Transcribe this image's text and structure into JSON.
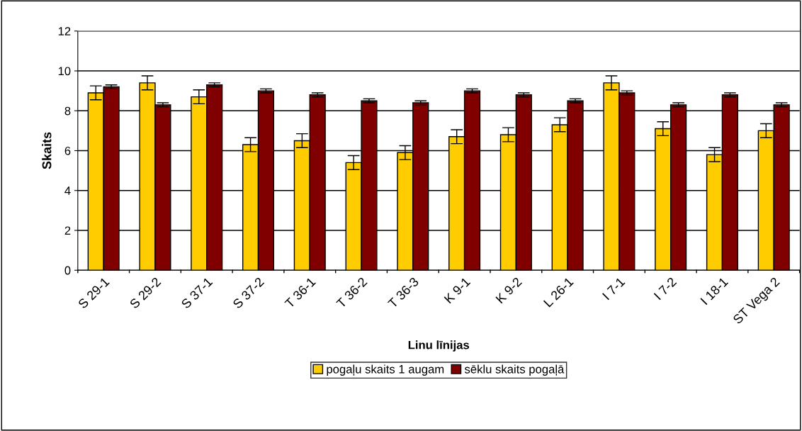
{
  "chart_data": {
    "type": "bar",
    "xlabel": "Linu līnijas",
    "ylabel": "Skaits",
    "categories": [
      "S 29-1",
      "S 29-2",
      "S 37-1",
      "S 37-2",
      "T 36-1",
      "T 36-2",
      "T 36-3",
      "K 9-1",
      "K 9-2",
      "L 26-1",
      "I 7-1",
      "I 7-2",
      "I 18-1",
      "ST Vega 2"
    ],
    "series": [
      {
        "name": "pogaļu skaits 1 augam",
        "color": "#ffcc00",
        "values": [
          8.9,
          9.4,
          8.7,
          6.3,
          6.5,
          5.4,
          5.9,
          6.7,
          6.8,
          7.3,
          9.4,
          7.1,
          5.8,
          7.0
        ],
        "errors": [
          0.35,
          0.35,
          0.35,
          0.35,
          0.35,
          0.35,
          0.35,
          0.35,
          0.35,
          0.35,
          0.35,
          0.35,
          0.35,
          0.35
        ]
      },
      {
        "name": "sēklu skaits pogaļā",
        "color": "#800000",
        "values": [
          9.2,
          8.3,
          9.3,
          9.0,
          8.8,
          8.5,
          8.4,
          9.0,
          8.8,
          8.5,
          8.9,
          8.3,
          8.8,
          8.3
        ],
        "errors": [
          0.1,
          0.1,
          0.1,
          0.1,
          0.1,
          0.1,
          0.1,
          0.1,
          0.1,
          0.1,
          0.1,
          0.1,
          0.1,
          0.1
        ]
      }
    ],
    "ylim": [
      0,
      12
    ],
    "yticks": [
      0,
      2,
      4,
      6,
      8,
      10,
      12
    ],
    "grid": "y",
    "legend": "bottom"
  }
}
